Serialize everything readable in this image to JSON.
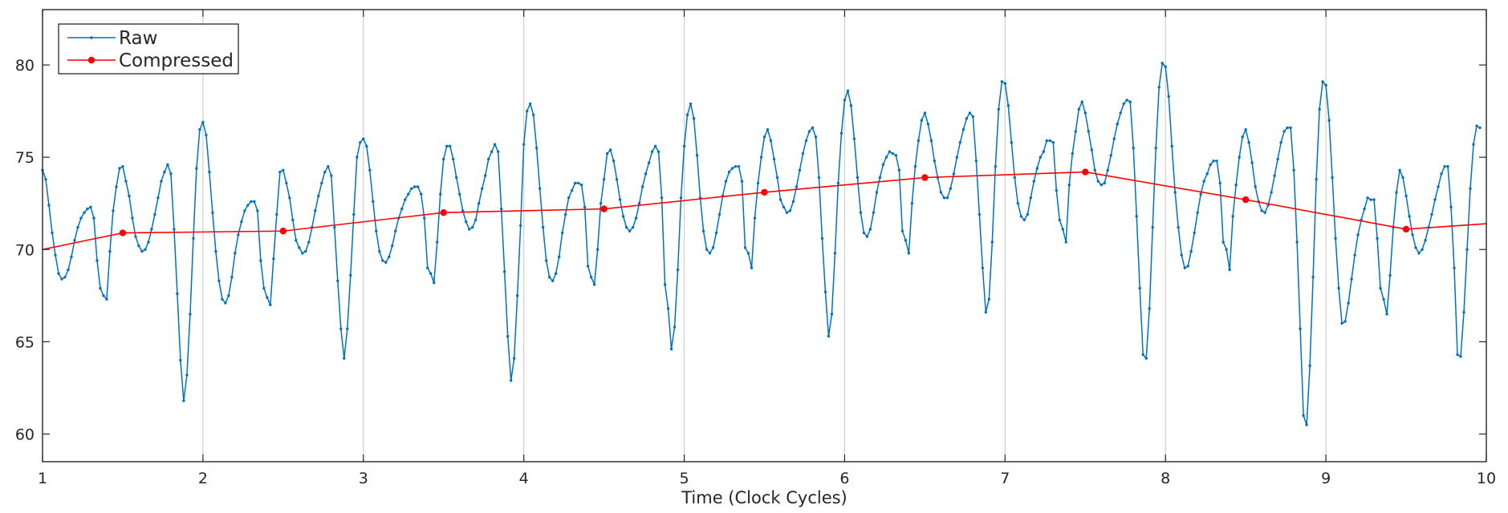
{
  "chart_data": {
    "type": "line",
    "title": "",
    "xlabel": "Time (Clock Cycles)",
    "ylabel": "",
    "xlim": [
      1,
      10
    ],
    "ylim": [
      58.5,
      83
    ],
    "xticks": [
      1,
      2,
      3,
      4,
      5,
      6,
      7,
      8,
      9,
      10
    ],
    "yticks": [
      60,
      65,
      70,
      75,
      80
    ],
    "grid": "vertical lines at integer x ticks",
    "legend": {
      "position": "top-left",
      "entries": [
        "Raw",
        "Compressed"
      ]
    },
    "colors": {
      "raw": "#0072BD",
      "compressed": "#FF0000",
      "grid": "#d0d0d0",
      "axes": "#262626"
    },
    "series": [
      {
        "name": "Raw",
        "style": "line-with-point-markers",
        "samples_per_cycle": 50,
        "description_of_waveform": "oscillating signal approx 6 peaks per clock cycle",
        "x_start": 1,
        "x_step": 0.02,
        "values": [
          74.3,
          73.8,
          72.4,
          70.9,
          69.7,
          68.7,
          68.4,
          68.5,
          68.9,
          69.6,
          70.5,
          71.2,
          71.7,
          72.0,
          72.2,
          72.3,
          71.7,
          69.4,
          67.9,
          67.5,
          67.3,
          69.9,
          72.1,
          73.4,
          74.4,
          74.5,
          73.7,
          72.9,
          71.7,
          70.7,
          70.2,
          69.9,
          70.0,
          70.4,
          71.1,
          71.9,
          72.8,
          73.7,
          74.2,
          74.6,
          74.1,
          71.1,
          67.6,
          64.0,
          61.8,
          63.2,
          66.5,
          70.6,
          74.4,
          76.5,
          76.9,
          76.2,
          74.2,
          72.0,
          69.9,
          68.3,
          67.3,
          67.1,
          67.5,
          68.5,
          69.8,
          70.8,
          71.5,
          72.1,
          72.4,
          72.6,
          72.6,
          72.1,
          69.4,
          67.9,
          67.4,
          67.0,
          69.5,
          71.9,
          74.2,
          74.3,
          73.6,
          72.8,
          71.6,
          70.5,
          70.1,
          69.8,
          69.9,
          70.4,
          71.2,
          72.1,
          72.9,
          73.6,
          74.2,
          74.5,
          74.0,
          71.2,
          68.3,
          65.7,
          64.1,
          65.7,
          68.6,
          71.9,
          75.0,
          75.8,
          76.0,
          75.6,
          74.3,
          72.6,
          71.0,
          69.9,
          69.4,
          69.3,
          69.6,
          70.2,
          71.0,
          71.7,
          72.2,
          72.7,
          73.0,
          73.3,
          73.4,
          73.4,
          73.0,
          71.7,
          69.0,
          68.7,
          68.2,
          70.4,
          73.0,
          74.9,
          75.6,
          75.6,
          74.9,
          73.9,
          73.0,
          72.1,
          71.5,
          71.1,
          71.2,
          71.6,
          72.5,
          73.3,
          74.0,
          74.9,
          75.3,
          75.7,
          75.3,
          72.2,
          68.8,
          65.3,
          62.9,
          64.1,
          67.5,
          71.3,
          75.7,
          77.5,
          77.9,
          77.3,
          75.5,
          73.3,
          71.2,
          69.4,
          68.5,
          68.3,
          68.7,
          69.6,
          70.9,
          71.9,
          72.8,
          73.2,
          73.6,
          73.6,
          73.5,
          72.3,
          69.1,
          68.5,
          68.1,
          70.0,
          72.5,
          73.8,
          75.2,
          75.4,
          74.8,
          73.8,
          72.7,
          71.8,
          71.2,
          71.0,
          71.2,
          71.7,
          72.5,
          73.4,
          74.1,
          74.7,
          75.3,
          75.6,
          75.3,
          72.8,
          68.1,
          66.8,
          64.6,
          65.8,
          68.9,
          72.8,
          75.6,
          77.3,
          77.9,
          77.1,
          75.1,
          72.8,
          71.0,
          70.0,
          69.8,
          70.1,
          70.9,
          71.9,
          72.9,
          73.7,
          74.2,
          74.4,
          74.5,
          74.5,
          73.7,
          70.1,
          69.8,
          69.0,
          71.7,
          73.6,
          75.0,
          76.1,
          76.5,
          75.9,
          74.9,
          73.9,
          72.7,
          72.3,
          72.0,
          72.1,
          72.6,
          73.4,
          74.3,
          75.2,
          75.9,
          76.4,
          76.6,
          76.1,
          73.9,
          70.6,
          67.7,
          65.3,
          66.5,
          69.8,
          73.6,
          76.3,
          78.1,
          78.6,
          77.8,
          76.0,
          73.9,
          72.0,
          70.9,
          70.7,
          71.1,
          72.0,
          73.1,
          73.9,
          74.6,
          75.0,
          75.3,
          75.2,
          75.1,
          74.3,
          71.0,
          70.5,
          69.8,
          72.5,
          74.5,
          75.9,
          77.0,
          77.4,
          76.8,
          75.9,
          74.8,
          73.9,
          73.1,
          72.8,
          72.8,
          73.3,
          74.1,
          75.0,
          75.8,
          76.5,
          77.1,
          77.4,
          77.2,
          74.8,
          71.9,
          69.0,
          66.6,
          67.3,
          70.4,
          74.5,
          77.6,
          79.1,
          79.0,
          77.8,
          75.8,
          73.9,
          72.5,
          71.8,
          71.6,
          71.9,
          72.8,
          73.7,
          74.4,
          75.0,
          75.3,
          75.9,
          75.9,
          75.8,
          73.2,
          71.6,
          71.1,
          70.4,
          73.5,
          75.2,
          76.4,
          77.6,
          78.0,
          77.4,
          76.4,
          75.4,
          74.3,
          73.7,
          73.5,
          73.6,
          74.3,
          75.1,
          76.0,
          76.8,
          77.4,
          77.9,
          78.1,
          78.0,
          75.5,
          71.8,
          67.9,
          64.3,
          64.1,
          66.8,
          71.2,
          75.5,
          78.8,
          80.1,
          79.9,
          78.3,
          75.6,
          73.1,
          71.2,
          69.7,
          69.0,
          69.1,
          69.9,
          70.9,
          72.0,
          73.0,
          73.7,
          74.1,
          74.6,
          74.8,
          74.8,
          73.6,
          70.4,
          70.0,
          68.9,
          71.8,
          73.5,
          75.0,
          76.1,
          76.5,
          75.8,
          74.7,
          73.4,
          72.6,
          72.1,
          72.0,
          72.4,
          73.1,
          74.0,
          74.9,
          75.8,
          76.4,
          76.6,
          76.6,
          74.3,
          70.4,
          65.7,
          61.0,
          60.5,
          63.7,
          68.5,
          73.8,
          77.6,
          79.1,
          78.9,
          77.0,
          73.9,
          70.6,
          67.9,
          66.0,
          66.1,
          67.1,
          68.4,
          69.7,
          70.8,
          71.6,
          72.2,
          72.8,
          72.7,
          72.7,
          70.6,
          67.9,
          67.3,
          66.5,
          68.6,
          71.2,
          73.1,
          74.3,
          73.9,
          72.9,
          71.8,
          70.8,
          70.1,
          69.8,
          70.0,
          70.5,
          71.2,
          71.9,
          72.7,
          73.4,
          74.1,
          74.5,
          74.5,
          72.3,
          69.0,
          64.3,
          64.2,
          66.6,
          70.0,
          73.3,
          75.7,
          76.7,
          76.6
        ]
      },
      {
        "name": "Compressed",
        "style": "line-with-circle-markers",
        "points": [
          {
            "x": 1.0,
            "y": 70.0
          },
          {
            "x": 1.5,
            "y": 70.9
          },
          {
            "x": 2.5,
            "y": 71.0
          },
          {
            "x": 3.5,
            "y": 72.0
          },
          {
            "x": 4.5,
            "y": 72.2
          },
          {
            "x": 5.5,
            "y": 73.1
          },
          {
            "x": 6.5,
            "y": 73.9
          },
          {
            "x": 7.5,
            "y": 74.2
          },
          {
            "x": 8.5,
            "y": 72.7
          },
          {
            "x": 9.5,
            "y": 71.1
          },
          {
            "x": 10.0,
            "y": 71.4
          }
        ],
        "marker_x": [
          1.5,
          2.5,
          3.5,
          4.5,
          5.5,
          6.5,
          7.5,
          8.5,
          9.5
        ]
      }
    ]
  }
}
